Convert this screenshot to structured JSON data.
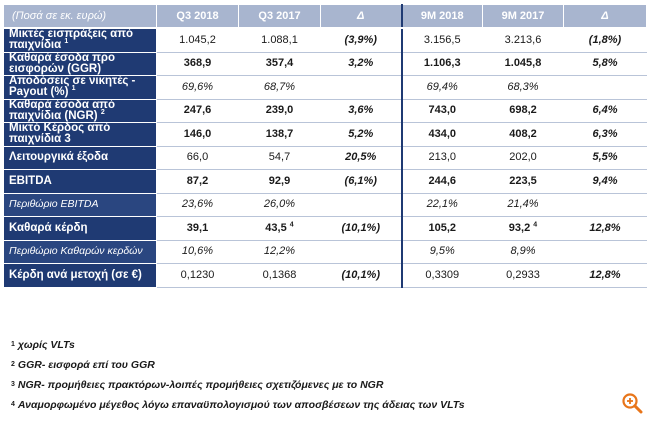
{
  "header": {
    "unit": "(Ποσά σε εκ. ευρώ)",
    "cols": [
      "Q3 2018",
      "Q3 2017",
      "Δ",
      "9M 2018",
      "9M 2017",
      "Δ"
    ]
  },
  "rows": [
    {
      "label": "Μικτές εισπράξεις από παιχνίδια",
      "sup": "1",
      "v": [
        "1.045,2",
        "1.088,1",
        "(3,9%)",
        "3.156,5",
        "3.213,6",
        "(1,8%)"
      ],
      "s": [
        "",
        "",
        "",
        "",
        "",
        ""
      ]
    },
    {
      "label": "Καθαρά έσοδα προ εισφορών (GGR)",
      "sup": "",
      "v": [
        "368,9",
        "357,4",
        "3,2%",
        "1.106,3",
        "1.045,8",
        "5,8%"
      ],
      "s": [
        "",
        "",
        "",
        "",
        "",
        ""
      ]
    },
    {
      "label": "Αποδόσεις σε νικητές - Payout (%)",
      "sup": "1",
      "v": [
        "69,6%",
        "68,7%",
        "",
        "69,4%",
        "68,3%",
        ""
      ],
      "s": [
        "",
        "",
        "",
        "",
        "",
        ""
      ]
    },
    {
      "label": "Καθαρά έσοδα από παιχνίδια (NGR)",
      "sup": "2",
      "v": [
        "247,6",
        "239,0",
        "3,6%",
        "743,0",
        "698,2",
        "6,4%"
      ],
      "s": [
        "",
        "",
        "",
        "",
        "",
        ""
      ]
    },
    {
      "label": "Μικτό Κέρδος από παιχνίδια 3",
      "sup": "",
      "v": [
        "146,0",
        "138,7",
        "5,2%",
        "434,0",
        "408,2",
        "6,3%"
      ],
      "s": [
        "",
        "",
        "",
        "",
        "",
        ""
      ]
    },
    {
      "label": "Λειτουργικά έξοδα",
      "sup": "",
      "v": [
        "66,0",
        "54,7",
        "20,5%",
        "213,0",
        "202,0",
        "5,5%"
      ],
      "s": [
        "",
        "",
        "",
        "",
        "",
        ""
      ]
    },
    {
      "label": "EBITDA",
      "sup": "",
      "v": [
        "87,2",
        "92,9",
        "(6,1%)",
        "244,6",
        "223,5",
        "9,4%"
      ],
      "s": [
        "",
        "",
        "",
        "",
        "",
        ""
      ]
    },
    {
      "label": "Περιθώριο EBITDA",
      "sup": "",
      "v": [
        "23,6%",
        "26,0%",
        "",
        "22,1%",
        "21,4%",
        ""
      ],
      "s": [
        "",
        "",
        "",
        "",
        "",
        ""
      ]
    },
    {
      "label": "Καθαρά κέρδη",
      "sup": "",
      "v": [
        "39,1",
        "43,5",
        "(10,1%)",
        "105,2",
        "93,2",
        "12,8%"
      ],
      "s": [
        "",
        "4",
        "",
        "",
        "4",
        ""
      ]
    },
    {
      "label": "Περιθώριο Καθαρών κερδών",
      "sup": "",
      "v": [
        "10,6%",
        "12,2%",
        "",
        "9,5%",
        "8,9%",
        ""
      ],
      "s": [
        "",
        "",
        "",
        "",
        "",
        ""
      ]
    },
    {
      "label": "Κέρδη ανά μετοχή (σε €)",
      "sup": "",
      "v": [
        "0,1230",
        "0,1368",
        "(10,1%)",
        "0,3309",
        "0,2933",
        "12,8%"
      ],
      "s": [
        "",
        "",
        "",
        "",
        "",
        ""
      ]
    }
  ],
  "notes": [
    {
      "n": "1",
      "text": "χωρίς VLTs"
    },
    {
      "n": "2",
      "text": "GGR- εισφορά επί του GGR"
    },
    {
      "n": "3",
      "text": "NGR- προμήθειες πρακτόρων-λοιπές προμήθειες σχετιζόμενες με το NGR"
    },
    {
      "n": "4",
      "text": "Αναμορφωμένο μέγεθος λόγω επαναϋπολογισμού των αποσβέσεων της άδειας των VLTs"
    }
  ],
  "icons": {
    "zoom": "zoom-in-icon"
  },
  "colors": {
    "label_bg": "#1f3a73",
    "header_bg": "#a8b5cf",
    "zoom": "#e8751a"
  }
}
